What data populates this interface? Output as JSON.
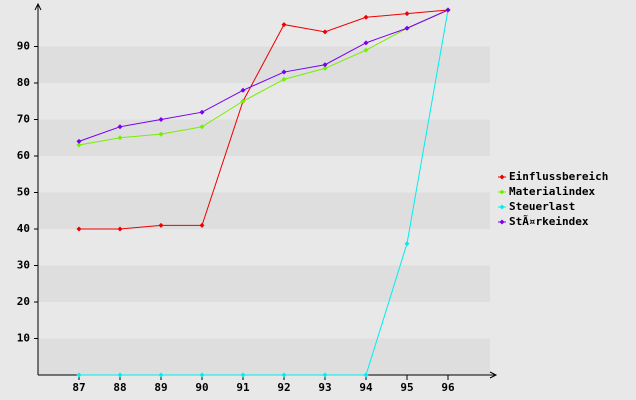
{
  "chart_data": {
    "type": "line",
    "categories": [
      "87",
      "88",
      "89",
      "90",
      "91",
      "92",
      "93",
      "94",
      "95",
      "96"
    ],
    "series": [
      {
        "name": "Einflussbereich",
        "color": "#ee0000",
        "values": [
          40,
          40,
          41,
          41,
          75,
          96,
          94,
          98,
          99,
          100
        ]
      },
      {
        "name": "Materialindex",
        "color": "#77ee00",
        "values": [
          63,
          65,
          66,
          68,
          75,
          81,
          84,
          89,
          95,
          100
        ]
      },
      {
        "name": "Steuerlast",
        "color": "#00eeee",
        "values": [
          0,
          0,
          0,
          0,
          0,
          0,
          0,
          0,
          36,
          100
        ]
      },
      {
        "name": "StÃ¤rkeindex",
        "color": "#7700ee",
        "values": [
          64,
          68,
          70,
          72,
          78,
          83,
          85,
          91,
          95,
          100
        ]
      }
    ],
    "ylim": [
      0,
      100
    ],
    "yticks": [
      10,
      20,
      30,
      40,
      50,
      60,
      70,
      80,
      90
    ],
    "legend": "right"
  }
}
